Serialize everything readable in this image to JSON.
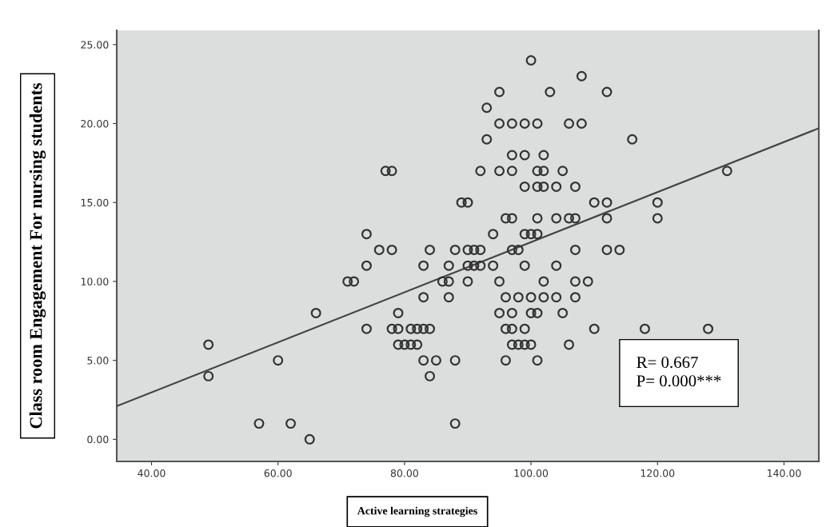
{
  "chart_data": {
    "type": "scatter",
    "xlabel": "Active learning strategies",
    "ylabel": "Class room Engagement For nursing students",
    "annotations": [
      "R= 0.667",
      "P= 0.000***"
    ],
    "xlim": [
      34.5,
      145.5
    ],
    "ylim": [
      -1.4,
      25.9
    ],
    "xticks": [
      {
        "value": 40,
        "label": "40.00"
      },
      {
        "value": 60,
        "label": "60.00"
      },
      {
        "value": 80,
        "label": "80.00"
      },
      {
        "value": 100,
        "label": "100.00"
      },
      {
        "value": 120,
        "label": "120.00"
      },
      {
        "value": 140,
        "label": "140.00"
      }
    ],
    "yticks": [
      {
        "value": 0,
        "label": "0.00"
      },
      {
        "value": 5,
        "label": "5.00"
      },
      {
        "value": 10,
        "label": "10.00"
      },
      {
        "value": 15,
        "label": "15.00"
      },
      {
        "value": 20,
        "label": "20.00"
      },
      {
        "value": 25,
        "label": "25.00"
      }
    ],
    "grid": false,
    "legend": false,
    "marker": "circle",
    "series": [
      {
        "color": "#333333",
        "x": [
          100,
          108,
          95,
          103,
          112,
          93,
          95,
          97,
          99,
          101,
          106,
          108,
          93,
          116,
          97,
          99,
          102,
          77,
          78,
          92,
          95,
          97,
          101,
          102,
          105,
          131,
          99,
          101,
          102,
          104,
          107,
          89,
          90,
          110,
          112,
          120,
          96,
          97,
          101,
          104,
          106,
          107,
          112,
          120,
          74,
          94,
          99,
          100,
          101,
          76,
          78,
          84,
          88,
          90,
          91,
          92,
          97,
          98,
          107,
          112,
          114,
          74,
          83,
          87,
          90,
          91,
          92,
          94,
          99,
          104,
          71,
          72,
          86,
          87,
          90,
          95,
          102,
          107,
          109,
          83,
          87,
          96,
          98,
          100,
          102,
          104,
          107,
          66,
          79,
          95,
          97,
          100,
          101,
          105,
          74,
          78,
          79,
          81,
          82,
          83,
          84,
          96,
          97,
          99,
          110,
          118,
          128,
          49,
          79,
          80,
          81,
          82,
          97,
          98,
          99,
          100,
          106,
          60,
          83,
          85,
          88,
          96,
          101,
          49,
          84,
          57,
          62,
          88,
          65
        ],
        "values": [
          24,
          23,
          22,
          22,
          22,
          21,
          20,
          20,
          20,
          20,
          20,
          20,
          19,
          19,
          18,
          18,
          18,
          17,
          17,
          17,
          17,
          17,
          17,
          17,
          17,
          17,
          16,
          16,
          16,
          16,
          16,
          15,
          15,
          15,
          15,
          15,
          14,
          14,
          14,
          14,
          14,
          14,
          14,
          14,
          13,
          13,
          13,
          13,
          13,
          12,
          12,
          12,
          12,
          12,
          12,
          12,
          12,
          12,
          12,
          12,
          12,
          11,
          11,
          11,
          11,
          11,
          11,
          11,
          11,
          11,
          10,
          10,
          10,
          10,
          10,
          10,
          10,
          10,
          10,
          9,
          9,
          9,
          9,
          9,
          9,
          9,
          9,
          8,
          8,
          8,
          8,
          8,
          8,
          8,
          7,
          7,
          7,
          7,
          7,
          7,
          7,
          7,
          7,
          7,
          7,
          7,
          7,
          6,
          6,
          6,
          6,
          6,
          6,
          6,
          6,
          6,
          6,
          5,
          5,
          5,
          5,
          5,
          5,
          4,
          4,
          1,
          1,
          1,
          0
        ]
      },
      {
        "type": "line",
        "color": "#444444",
        "line_style": "solid",
        "marker": "none",
        "x": [
          34.5,
          145.5
        ],
        "values": [
          2.1,
          19.7
        ]
      }
    ]
  }
}
